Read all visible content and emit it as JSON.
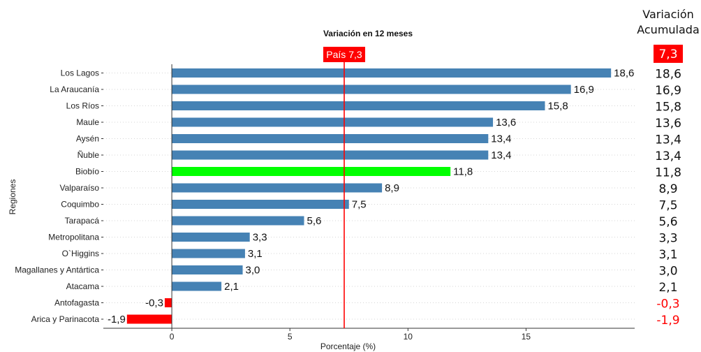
{
  "chart_data": {
    "type": "bar",
    "orientation": "horizontal",
    "title": "Variación en 12 meses",
    "xlabel": "Porcentaje (%)",
    "ylabel": "Regiones",
    "xlim": [
      -2.9,
      19.6
    ],
    "xticks": [
      0,
      5,
      10,
      15
    ],
    "categories": [
      "Los Lagos",
      "La Araucanía",
      "Los Ríos",
      "Maule",
      "Aysén",
      "Ñuble",
      "Biobío",
      "Valparaíso",
      "Coquimbo",
      "Tarapacá",
      "Metropolitana",
      "O`Higgins",
      "Magallanes y Antártica",
      "Atacama",
      "Antofagasta",
      "Arica y Parinacota"
    ],
    "values": [
      18.6,
      16.9,
      15.8,
      13.6,
      13.4,
      13.4,
      11.8,
      8.9,
      7.5,
      5.6,
      3.3,
      3.1,
      3.0,
      2.1,
      -0.3,
      -1.9
    ],
    "value_labels": [
      "18,6",
      "16,9",
      "15,8",
      "13,6",
      "13,4",
      "13,4",
      "11,8",
      "8,9",
      "7,5",
      "5,6",
      "3,3",
      "3,1",
      "3,0",
      "2,1",
      "-0,3",
      "-1,9"
    ],
    "reference_line": {
      "value": 7.3,
      "label": "País 7,3",
      "color": "#ff0000"
    },
    "colors": {
      "default": "#4682b4",
      "highlight": "#00ff00",
      "negative": "#ff0000"
    },
    "highlight_category": "Biobío",
    "grid": {
      "horizontal_dotted": true
    }
  },
  "side_table": {
    "header_line1": "Variación",
    "header_line2": "Acumulada",
    "total": "7,3",
    "values": [
      "18,6",
      "16,9",
      "15,8",
      "13,6",
      "13,4",
      "13,4",
      "11,8",
      "8,9",
      "7,5",
      "5,6",
      "3,3",
      "3,1",
      "3,0",
      "2,1",
      "-0,3",
      "-1,9"
    ]
  }
}
